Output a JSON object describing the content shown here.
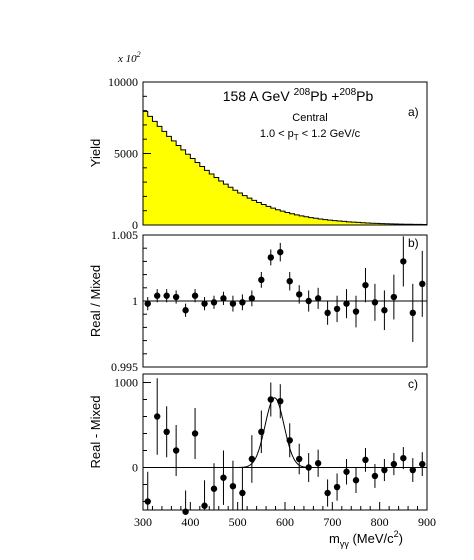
{
  "chart_data": [
    {
      "type": "histogram",
      "panel": "a)",
      "scale_note": {
        "prefix": "x 10",
        "exp": "2"
      },
      "ylabel": "Yield",
      "title": {
        "prefix": "158 A GeV ",
        "sup1": "208",
        "mid": "Pb +",
        "sup2": "208",
        "suffix": "Pb"
      },
      "subtitle": "Central",
      "selection": {
        "pre": "1.0 < p",
        "sub": "T",
        "post": " < 1.2 GeV/c"
      },
      "ylim": [
        0,
        10000
      ],
      "y_ticks": [
        "10000",
        "5000",
        "0"
      ],
      "fill_color": "#ffff00",
      "bin_width": 10,
      "x_start": 300,
      "values": [
        7950,
        7600,
        7250,
        6900,
        6550,
        6200,
        5880,
        5560,
        5250,
        4950,
        4650,
        4370,
        4090,
        3820,
        3570,
        3320,
        3080,
        2860,
        2640,
        2430,
        2240,
        2050,
        1880,
        1720,
        1570,
        1430,
        1300,
        1180,
        1070,
        970,
        870,
        790,
        710,
        640,
        580,
        520,
        470,
        420,
        380,
        340,
        310,
        280,
        250,
        220,
        200,
        180,
        160,
        140,
        120,
        110,
        100,
        90,
        80,
        70,
        60,
        55,
        50,
        45,
        40,
        35
      ]
    },
    {
      "type": "scatter",
      "panel": "b)",
      "ylabel": "Real / Mixed",
      "ylim": [
        0.995,
        1.005
      ],
      "y_ticks": [
        "1.005",
        "1",
        "0.995"
      ],
      "reference_y": 1.0,
      "points": [
        {
          "x": 310,
          "y": 0.9998,
          "err": 0.0005
        },
        {
          "x": 330,
          "y": 1.0004,
          "err": 0.0005
        },
        {
          "x": 350,
          "y": 1.0004,
          "err": 0.0005
        },
        {
          "x": 370,
          "y": 1.0003,
          "err": 0.0005
        },
        {
          "x": 390,
          "y": 0.9993,
          "err": 0.0005
        },
        {
          "x": 410,
          "y": 1.0004,
          "err": 0.0005
        },
        {
          "x": 430,
          "y": 0.9998,
          "err": 0.0005
        },
        {
          "x": 450,
          "y": 0.9999,
          "err": 0.0005
        },
        {
          "x": 470,
          "y": 1.0002,
          "err": 0.0005
        },
        {
          "x": 490,
          "y": 0.9998,
          "err": 0.0006
        },
        {
          "x": 510,
          "y": 0.9999,
          "err": 0.0006
        },
        {
          "x": 530,
          "y": 1.0002,
          "err": 0.0006
        },
        {
          "x": 550,
          "y": 1.0016,
          "err": 0.0006
        },
        {
          "x": 570,
          "y": 1.0033,
          "err": 0.0006
        },
        {
          "x": 590,
          "y": 1.0037,
          "err": 0.0007
        },
        {
          "x": 610,
          "y": 1.0015,
          "err": 0.0007
        },
        {
          "x": 630,
          "y": 1.0005,
          "err": 0.0007
        },
        {
          "x": 650,
          "y": 1.0,
          "err": 0.0008
        },
        {
          "x": 670,
          "y": 1.0002,
          "err": 0.0008
        },
        {
          "x": 690,
          "y": 0.9991,
          "err": 0.0009
        },
        {
          "x": 710,
          "y": 0.9994,
          "err": 0.001
        },
        {
          "x": 730,
          "y": 0.9998,
          "err": 0.0011
        },
        {
          "x": 750,
          "y": 0.9992,
          "err": 0.0012
        },
        {
          "x": 770,
          "y": 1.0012,
          "err": 0.0013
        },
        {
          "x": 790,
          "y": 0.9999,
          "err": 0.0014
        },
        {
          "x": 810,
          "y": 0.9993,
          "err": 0.0015
        },
        {
          "x": 830,
          "y": 1.0003,
          "err": 0.0017
        },
        {
          "x": 850,
          "y": 1.003,
          "err": 0.0019
        },
        {
          "x": 870,
          "y": 0.9991,
          "err": 0.0022
        },
        {
          "x": 890,
          "y": 1.0013,
          "err": 0.0025
        }
      ]
    },
    {
      "type": "scatter",
      "panel": "c)",
      "ylabel": "Real - Mixed",
      "xlabel": {
        "m": "m",
        "sub": "γγ",
        "unit": " (MeV/c",
        "sup": "2",
        "close": ")"
      },
      "xlim": [
        300,
        900
      ],
      "ylim": [
        -500,
        1100
      ],
      "x_ticks": [
        "300",
        "400",
        "500",
        "600",
        "700",
        "800",
        "900"
      ],
      "y_ticks": [
        "1000",
        "0"
      ],
      "reference_y": 0,
      "fit": {
        "type": "gaussian",
        "amplitude": 820,
        "mean": 578,
        "sigma": 20
      },
      "points": [
        {
          "x": 310,
          "y": -400,
          "err": 350
        },
        {
          "x": 330,
          "y": 600,
          "err": 450
        },
        {
          "x": 350,
          "y": 420,
          "err": 300
        },
        {
          "x": 370,
          "y": 200,
          "err": 300
        },
        {
          "x": 390,
          "y": -520,
          "err": 250
        },
        {
          "x": 410,
          "y": 400,
          "err": 300
        },
        {
          "x": 430,
          "y": -450,
          "err": 300
        },
        {
          "x": 450,
          "y": -250,
          "err": 300
        },
        {
          "x": 470,
          "y": -120,
          "err": 320
        },
        {
          "x": 490,
          "y": -220,
          "err": 300
        },
        {
          "x": 510,
          "y": -300,
          "err": 300
        },
        {
          "x": 530,
          "y": 100,
          "err": 280
        },
        {
          "x": 550,
          "y": 420,
          "err": 250
        },
        {
          "x": 570,
          "y": 800,
          "err": 200
        },
        {
          "x": 590,
          "y": 780,
          "err": 200
        },
        {
          "x": 610,
          "y": 320,
          "err": 200
        },
        {
          "x": 630,
          "y": 100,
          "err": 180
        },
        {
          "x": 650,
          "y": 0,
          "err": 170
        },
        {
          "x": 670,
          "y": 50,
          "err": 160
        },
        {
          "x": 690,
          "y": -300,
          "err": 160
        },
        {
          "x": 710,
          "y": -230,
          "err": 160
        },
        {
          "x": 730,
          "y": -50,
          "err": 150
        },
        {
          "x": 750,
          "y": -150,
          "err": 150
        },
        {
          "x": 770,
          "y": 90,
          "err": 140
        },
        {
          "x": 790,
          "y": -100,
          "err": 140
        },
        {
          "x": 810,
          "y": -30,
          "err": 130
        },
        {
          "x": 830,
          "y": 40,
          "err": 130
        },
        {
          "x": 850,
          "y": 110,
          "err": 130
        },
        {
          "x": 870,
          "y": -30,
          "err": 140
        },
        {
          "x": 890,
          "y": 40,
          "err": 140
        }
      ]
    }
  ]
}
